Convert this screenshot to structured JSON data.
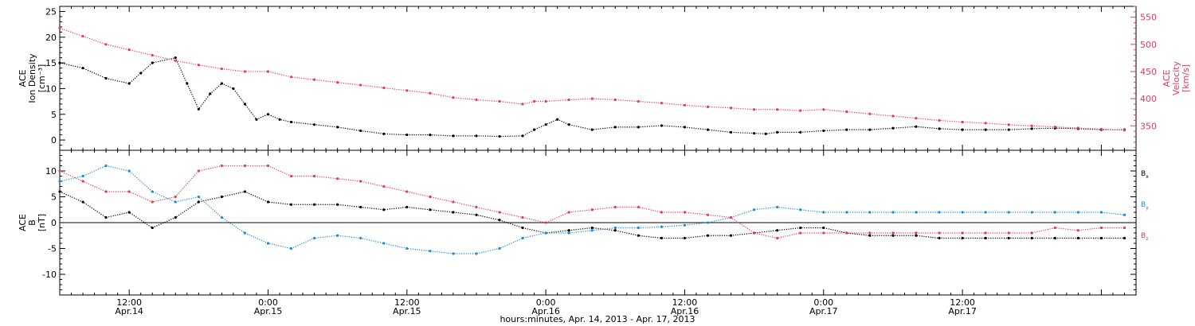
{
  "chart_data": [
    {
      "type": "scatter",
      "panel": "top",
      "x_unit": "hours since Apr.14 00:00",
      "xlim": [
        6,
        99
      ],
      "left_axis": {
        "label_lines": [
          "ACE",
          "Ion Density",
          "[cm⁻³]"
        ],
        "ylim": [
          -2,
          26
        ],
        "ticks": [
          0,
          5,
          10,
          15,
          20,
          25
        ],
        "color": "#000000"
      },
      "right_axis": {
        "label_lines": [
          "ACE",
          "Velocity",
          "[km/s]"
        ],
        "ylim": [
          305,
          570
        ],
        "ticks": [
          350,
          400,
          450,
          500,
          550
        ],
        "color": "#e8385f"
      },
      "series": [
        {
          "name": "Ion Density",
          "axis": "left",
          "color": "#000000",
          "x": [
            6,
            8,
            10,
            12,
            13,
            14,
            16,
            17,
            18,
            19,
            20,
            21,
            22,
            23,
            24,
            25,
            26,
            28,
            30,
            32,
            34,
            36,
            38,
            40,
            42,
            44,
            46,
            47,
            48,
            49,
            50,
            52,
            54,
            56,
            58,
            60,
            62,
            64,
            66,
            67,
            68,
            70,
            72,
            74,
            76,
            78,
            80,
            82,
            84,
            86,
            88,
            90,
            92,
            94,
            96,
            98
          ],
          "y": [
            15,
            14,
            12,
            11,
            13,
            15,
            16,
            11,
            6,
            9,
            11,
            10,
            7,
            4,
            5,
            4,
            3.5,
            3,
            2.5,
            1.8,
            1.2,
            1,
            1,
            0.8,
            0.8,
            0.7,
            0.8,
            2,
            3,
            4,
            3,
            2,
            2.5,
            2.5,
            2.8,
            2.5,
            2,
            1.5,
            1.3,
            1.2,
            1.5,
            1.5,
            1.8,
            2,
            2,
            2.3,
            2.6,
            2.2,
            2,
            2,
            2,
            2.2,
            2.3,
            2.2,
            2,
            2
          ]
        },
        {
          "name": "Velocity",
          "axis": "right",
          "color": "#e8385f",
          "x": [
            6,
            8,
            10,
            12,
            14,
            16,
            18,
            20,
            22,
            24,
            26,
            28,
            30,
            32,
            34,
            36,
            38,
            40,
            42,
            44,
            46,
            47,
            48,
            50,
            52,
            54,
            56,
            58,
            60,
            62,
            64,
            66,
            68,
            70,
            72,
            74,
            76,
            78,
            80,
            82,
            84,
            86,
            88,
            90,
            92,
            94,
            96,
            98
          ],
          "y": [
            530,
            515,
            500,
            490,
            480,
            470,
            462,
            455,
            450,
            450,
            440,
            435,
            430,
            425,
            420,
            415,
            410,
            402,
            398,
            395,
            390,
            395,
            395,
            398,
            400,
            398,
            395,
            392,
            388,
            385,
            383,
            380,
            380,
            378,
            380,
            376,
            372,
            368,
            364,
            360,
            357,
            355,
            352,
            350,
            348,
            346,
            344,
            342
          ]
        }
      ]
    },
    {
      "type": "scatter",
      "panel": "bottom",
      "x_unit": "hours since Apr.14 00:00",
      "xlim": [
        6,
        99
      ],
      "ylim": [
        -14,
        14
      ],
      "y_ticks": [
        -10,
        -5,
        0,
        5,
        10
      ],
      "y_label_lines": [
        "ACE",
        "B",
        "[nT]"
      ],
      "zero_line": true,
      "xlabel": "hours:minutes, Apr. 14, 2013 - Apr. 17, 2013",
      "x_ticks": [
        {
          "hour": 12,
          "time": "12:00",
          "date": "Apr.14"
        },
        {
          "hour": 24,
          "time": "0:00",
          "date": "Apr.15"
        },
        {
          "hour": 36,
          "time": "12:00",
          "date": "Apr.15"
        },
        {
          "hour": 48,
          "time": "0:00",
          "date": "Apr.16"
        },
        {
          "hour": 60,
          "time": "12:00",
          "date": "Apr.16"
        },
        {
          "hour": 72,
          "time": "0:00",
          "date": "Apr.17"
        },
        {
          "hour": 84,
          "time": "12:00",
          "date": "Apr.17"
        }
      ],
      "series": [
        {
          "name": "Bx",
          "legend_text": "B",
          "legend_sub": "x",
          "color": "#000000",
          "x": [
            6,
            8,
            10,
            12,
            14,
            16,
            18,
            20,
            22,
            24,
            26,
            28,
            30,
            32,
            34,
            36,
            38,
            40,
            42,
            44,
            46,
            48,
            50,
            52,
            54,
            56,
            58,
            60,
            62,
            64,
            66,
            68,
            70,
            72,
            74,
            76,
            78,
            80,
            82,
            84,
            86,
            88,
            90,
            92,
            94,
            96,
            98
          ],
          "y": [
            6,
            4,
            1,
            2,
            -1,
            1,
            4,
            5,
            6,
            4,
            3.5,
            3.5,
            3.5,
            3,
            2.5,
            3,
            2.5,
            2,
            1.5,
            0.5,
            -1,
            -2,
            -1.5,
            -1,
            -1.5,
            -2.5,
            -3,
            -3,
            -2.5,
            -2.5,
            -2,
            -1.5,
            -1,
            -1,
            -2,
            -2.5,
            -2.5,
            -2.5,
            -3,
            -3,
            -3,
            -3,
            -3,
            -3,
            -3,
            -3,
            -3
          ]
        },
        {
          "name": "By",
          "legend_text": "B",
          "legend_sub": "y",
          "color": "#1a8ae0",
          "x": [
            6,
            8,
            10,
            12,
            14,
            16,
            18,
            20,
            22,
            24,
            26,
            28,
            30,
            32,
            34,
            36,
            38,
            40,
            42,
            44,
            46,
            48,
            50,
            52,
            54,
            56,
            58,
            60,
            62,
            64,
            66,
            68,
            70,
            72,
            74,
            76,
            78,
            80,
            82,
            84,
            86,
            88,
            90,
            92,
            94,
            96,
            98
          ],
          "y": [
            8,
            9,
            11,
            10,
            6,
            4,
            5,
            1,
            -2,
            -4,
            -5,
            -3,
            -2.5,
            -3,
            -4,
            -5,
            -5.5,
            -6,
            -6,
            -5,
            -3,
            -2,
            -2,
            -1.5,
            -1,
            -1,
            -0.8,
            -0.5,
            0,
            1,
            2.5,
            3,
            2.5,
            2,
            2,
            2,
            2,
            2,
            2,
            2,
            2,
            2,
            2,
            2,
            2,
            2,
            1.5
          ]
        },
        {
          "name": "Bz",
          "legend_text": "B",
          "legend_sub": "z",
          "color": "#e8385f",
          "x": [
            6,
            8,
            10,
            12,
            14,
            16,
            18,
            20,
            22,
            24,
            26,
            28,
            30,
            32,
            34,
            36,
            38,
            40,
            42,
            44,
            46,
            48,
            50,
            52,
            54,
            56,
            58,
            60,
            62,
            64,
            66,
            68,
            70,
            72,
            74,
            76,
            78,
            80,
            82,
            84,
            86,
            88,
            90,
            92,
            94,
            96,
            98
          ],
          "y": [
            10,
            8,
            6,
            6,
            4,
            5,
            10,
            11,
            11,
            11,
            9,
            9,
            8.5,
            8,
            7,
            6,
            5,
            4,
            3,
            2,
            1,
            0,
            2,
            2.5,
            3,
            3,
            2,
            2,
            1.5,
            1,
            -2,
            -3,
            -2,
            -2,
            -2,
            -2,
            -2,
            -2,
            -2,
            -2,
            -2,
            -2,
            -2,
            -1,
            -1.5,
            -1,
            -1
          ]
        }
      ]
    }
  ]
}
